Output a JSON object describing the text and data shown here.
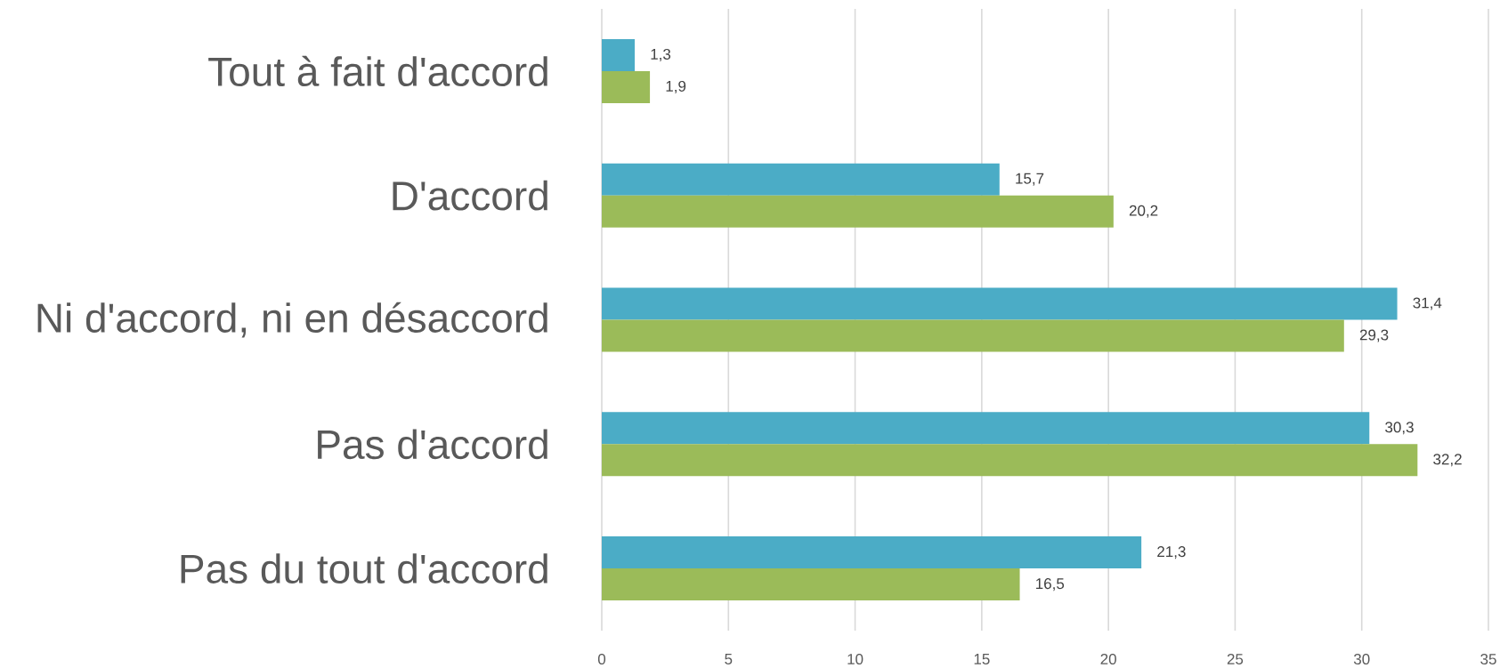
{
  "chart_data": {
    "type": "bar",
    "orientation": "horizontal",
    "categories": [
      "Tout à fait d'accord",
      "D'accord",
      "Ni d'accord, ni en désaccord",
      "Pas d'accord",
      "Pas du tout d'accord"
    ],
    "series": [
      {
        "color": "#4bacc6",
        "values": [
          1.3,
          15.7,
          31.4,
          30.3,
          21.3
        ],
        "value_labels": [
          "1,3",
          "15,7",
          "31,4",
          "30,3",
          "21,3"
        ]
      },
      {
        "color": "#9bbb59",
        "values": [
          1.9,
          20.2,
          29.3,
          32.2,
          16.5
        ],
        "value_labels": [
          "1,9",
          "20,2",
          "29,3",
          "32,2",
          "16,5"
        ]
      }
    ],
    "xlim": [
      0,
      35
    ],
    "xticks": [
      0,
      5,
      10,
      15,
      20,
      25,
      30,
      35
    ],
    "grid": "x"
  }
}
